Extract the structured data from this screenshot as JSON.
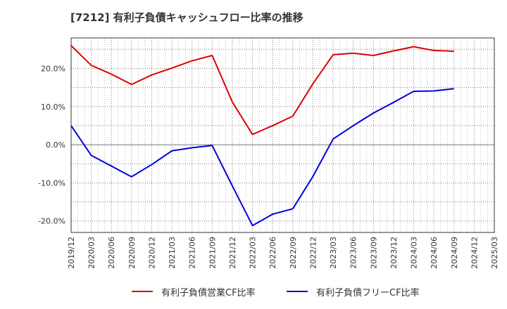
{
  "title": "[7212]  有利子負債キャッシュフロー比率の推移",
  "colors": {
    "grid": "#808080",
    "axis": "#333333",
    "zero_line": "#777777"
  },
  "chart_data": {
    "type": "line",
    "title": "[7212]  有利子負債キャッシュフロー比率の推移",
    "xlabel": "",
    "ylabel": "",
    "x_ticks": [
      "2019/12",
      "2020/03",
      "2020/06",
      "2020/09",
      "2020/12",
      "2021/03",
      "2021/06",
      "2021/09",
      "2021/12",
      "2022/03",
      "2022/06",
      "2022/09",
      "2022/12",
      "2023/03",
      "2023/06",
      "2023/09",
      "2023/12",
      "2024/03",
      "2024/06",
      "2024/09",
      "2024/12",
      "2025/03"
    ],
    "y_ticks": [
      {
        "value": 20,
        "label": "20.0%"
      },
      {
        "value": 10,
        "label": "10.0%"
      },
      {
        "value": 0,
        "label": "0.0%"
      },
      {
        "value": -10,
        "label": "-10.0%"
      },
      {
        "value": -20,
        "label": "-20.0%"
      }
    ],
    "ylim": [
      -23,
      28
    ],
    "grid": true,
    "legend_position": "bottom",
    "series": [
      {
        "name": "有利子負債営業CF比率",
        "color": "#dd0000",
        "values": [
          26.0,
          20.8,
          18.5,
          15.8,
          18.3,
          20.1,
          22.0,
          23.4,
          11.2,
          2.7,
          5.0,
          7.5,
          16.0,
          23.6,
          24.0,
          23.4,
          24.6,
          25.7,
          24.7,
          24.5,
          null,
          null
        ]
      },
      {
        "name": "有利子負債フリーCF比率",
        "color": "#0000dd",
        "values": [
          5.0,
          -2.8,
          -5.6,
          -8.4,
          -5.2,
          -1.6,
          -0.8,
          -0.2,
          -10.8,
          -21.2,
          -18.2,
          -16.8,
          -8.3,
          1.5,
          5.0,
          8.3,
          11.1,
          14.0,
          14.1,
          14.7,
          null,
          null
        ]
      }
    ]
  }
}
